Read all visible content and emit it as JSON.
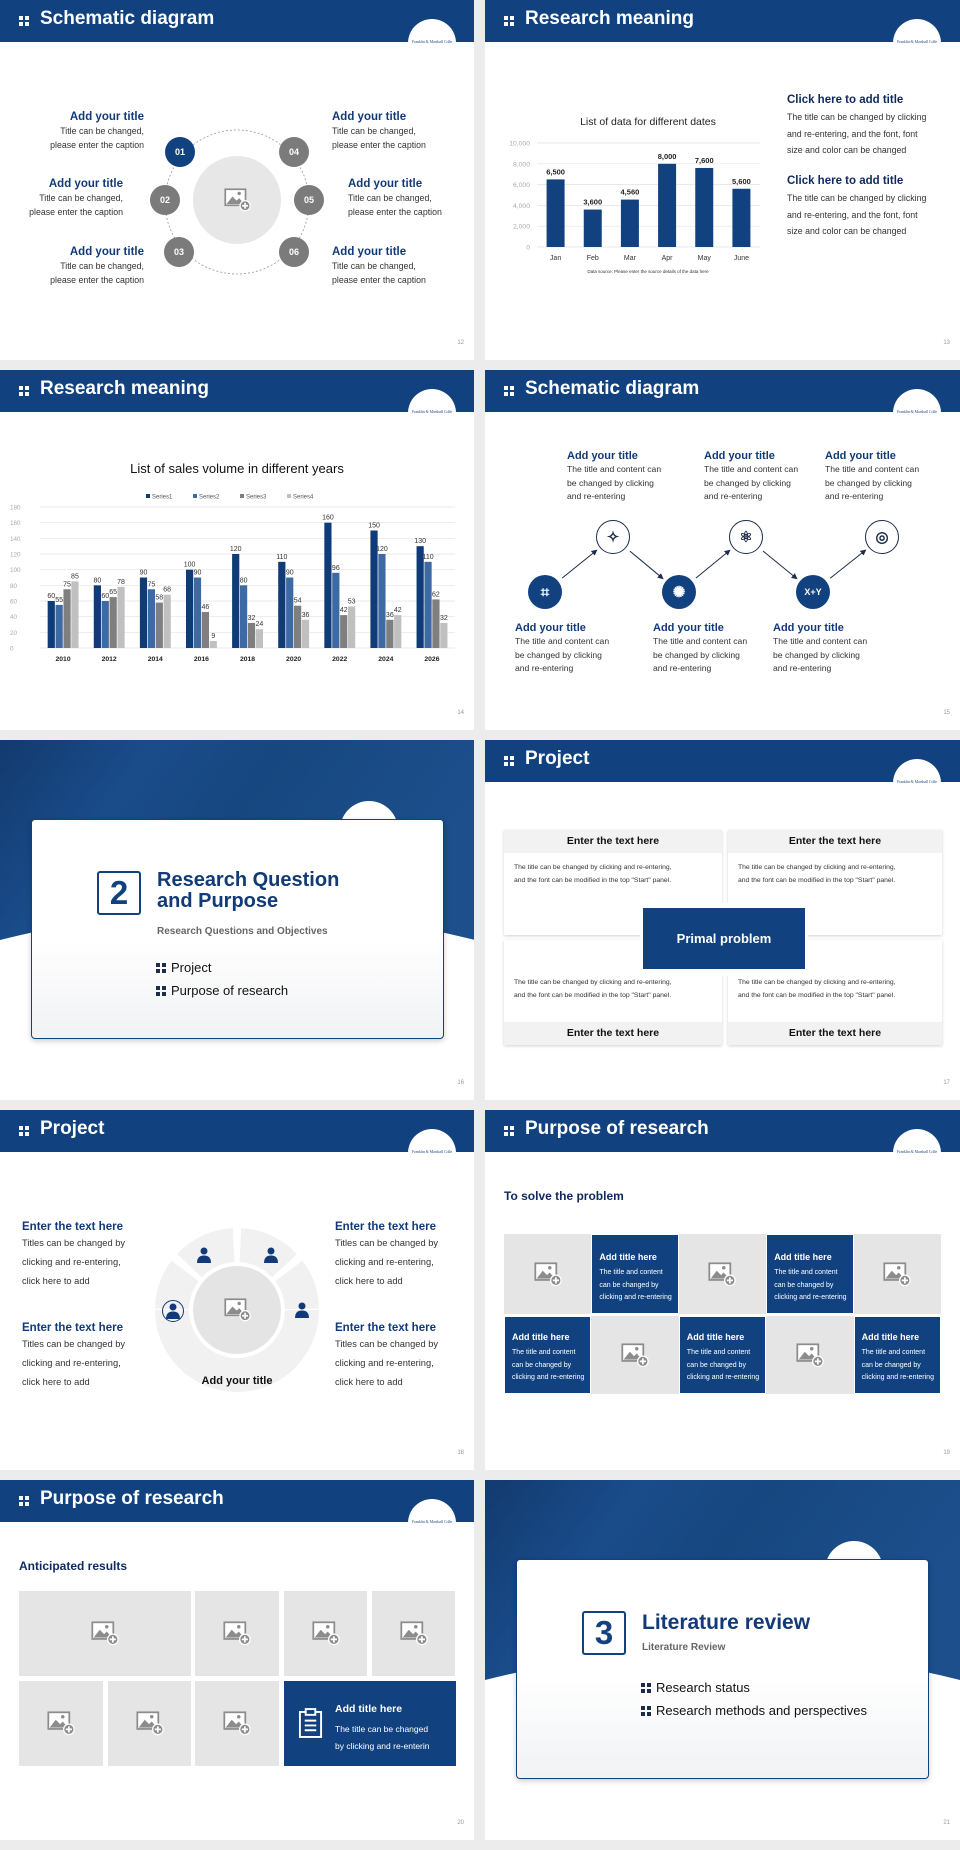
{
  "colors": {
    "primary": "#11427f",
    "dark_text": "#0e2a5c",
    "gray_circle": "#7b7b7b",
    "placeholder": "#e6e5e5"
  },
  "logo_text": "Franklin & Marshall College",
  "slides": [
    {
      "title": "Schematic diagram",
      "page": "12",
      "items": [
        {
          "num": "01",
          "title": "Add your title",
          "caption": [
            "Title can be changed,",
            "please enter the caption"
          ]
        },
        {
          "num": "02",
          "title": "Add your title",
          "caption": [
            "Title can be changed,",
            "please enter the caption"
          ]
        },
        {
          "num": "03",
          "title": "Add your title",
          "caption": [
            "Title can be changed,",
            "please enter the caption"
          ]
        },
        {
          "num": "04",
          "title": "Add your title",
          "caption": [
            "Title can be changed,",
            "please enter the caption"
          ]
        },
        {
          "num": "05",
          "title": "Add your title",
          "caption": [
            "Title can be changed,",
            "please enter the caption"
          ]
        },
        {
          "num": "06",
          "title": "Add your title",
          "caption": [
            "Title can be changed,",
            "please enter the caption"
          ]
        }
      ]
    },
    {
      "title": "Research meaning",
      "page": "13",
      "text_blocks": [
        {
          "title": "Click here to add title",
          "body": [
            "The title can be changed by clicking",
            "and re-entering, and the font, font",
            "size and color can be changed"
          ]
        },
        {
          "title": "Click here to add title",
          "body": [
            "The title can be changed by clicking",
            "and re-entering, and the font, font",
            "size and color can be changed"
          ]
        }
      ]
    },
    {
      "title": "Research meaning",
      "page": "14"
    },
    {
      "title": "Schematic diagram",
      "page": "15",
      "steps": [
        {
          "icon": "network-cube-icon",
          "title": "Add your title",
          "body": [
            "The title and content can",
            "be changed by clicking",
            "and re-entering"
          ]
        },
        {
          "icon": "sparkles-icon",
          "title": "Add your title",
          "body": [
            "The title and content can",
            "be changed by clicking",
            "and re-entering"
          ]
        },
        {
          "icon": "hub-icon",
          "title": "Add your title",
          "body": [
            "The title and content can",
            "be changed by clicking",
            "and re-entering"
          ]
        },
        {
          "icon": "molecule-icon",
          "title": "Add your title",
          "body": [
            "The title and content can",
            "be changed by clicking",
            "and re-entering"
          ]
        },
        {
          "icon": "formula-icon",
          "glyph": "X+Y",
          "title": "Add your title",
          "body": [
            "The title and content can",
            "be changed by clicking",
            "and re-entering"
          ]
        },
        {
          "icon": "orbit-icon",
          "title": "Add your title",
          "body": [
            "The title and content can",
            "be changed by clicking",
            "and re-entering"
          ]
        }
      ]
    },
    {
      "page": "16",
      "number": "2",
      "title_lines": [
        "Research Question",
        "and Purpose"
      ],
      "subtitle": "Research Questions and Objectives",
      "bullets": [
        "Project",
        "Purpose of research"
      ]
    },
    {
      "title": "Project",
      "page": "17",
      "center": "Primal problem",
      "boxes": [
        {
          "heading": "Enter the text here",
          "body": [
            "The title can be changed by clicking and re-entering,",
            "and the font can be modified in the top \"Start\" panel."
          ]
        },
        {
          "heading": "Enter the text here",
          "body": [
            "The title can be changed by clicking and re-entering,",
            "and the font can be modified in the top \"Start\" panel."
          ]
        },
        {
          "heading": "Enter the text here",
          "body": [
            "The title can be changed by clicking and re-entering,",
            "and the font can be modified in the top \"Start\" panel."
          ]
        },
        {
          "heading": "Enter the text here",
          "body": [
            "The title can be changed by clicking and re-entering,",
            "and the font can be modified in the top \"Start\" panel."
          ]
        }
      ]
    },
    {
      "title": "Project",
      "page": "18",
      "center_title": "Add your title",
      "icons": [
        "user-circle-icon",
        "team-icon",
        "user-settings-icon",
        "reader-icon"
      ],
      "blocks": [
        {
          "title": "Enter the text here",
          "body": [
            "Titles can be changed by",
            "clicking and re-entering,",
            "click here to add"
          ]
        },
        {
          "title": "Enter the text here",
          "body": [
            "Titles can be changed by",
            "clicking and re-entering,",
            "click here to add"
          ]
        },
        {
          "title": "Enter the text here",
          "body": [
            "Titles can be changed by",
            "clicking and re-entering,",
            "click here to add"
          ]
        },
        {
          "title": "Enter the text here",
          "body": [
            "Titles can be changed by",
            "clicking and re-entering,",
            "click here to add"
          ]
        }
      ]
    },
    {
      "title": "Purpose of research",
      "page": "19",
      "subtitle": "To solve the problem",
      "cells": [
        {
          "type": "image"
        },
        {
          "type": "text",
          "title": "Add title here",
          "body": [
            "The title and content",
            "can be changed by",
            "clicking and re-entering"
          ]
        },
        {
          "type": "image"
        },
        {
          "type": "text",
          "title": "Add title here",
          "body": [
            "The title and content",
            "can be changed by",
            "clicking and re-entering"
          ]
        },
        {
          "type": "image"
        },
        {
          "type": "text",
          "title": "Add title here",
          "body": [
            "The title and content",
            "can be changed by",
            "clicking and re-entering"
          ]
        },
        {
          "type": "image"
        },
        {
          "type": "text",
          "title": "Add title here",
          "body": [
            "The title and content",
            "can be changed by",
            "clicking and re-entering"
          ]
        },
        {
          "type": "image"
        },
        {
          "type": "text",
          "title": "Add title here",
          "body": [
            "The title and content",
            "can be changed by",
            "clicking and re-entering"
          ]
        }
      ]
    },
    {
      "title": "Purpose of research",
      "page": "20",
      "subtitle": "Anticipated results",
      "card": {
        "icon": "clipboard-icon",
        "title": "Add title here",
        "body": [
          "The title can be changed",
          "by clicking and re-enterin"
        ]
      }
    },
    {
      "page": "21",
      "number": "3",
      "title": "Literature review",
      "subtitle": "Literature Review",
      "bullets": [
        "Research status",
        "Research methods and perspectives"
      ]
    }
  ],
  "chart_data": [
    {
      "type": "bar",
      "title": "List of data for different dates",
      "categories": [
        "Jan",
        "Feb",
        "Mar",
        "Apr",
        "May",
        "June"
      ],
      "values": [
        6500,
        3600,
        4560,
        8000,
        7600,
        5600
      ],
      "value_labels": [
        "6,500",
        "3,600",
        "4,560",
        "8,000",
        "7,600",
        "5,600"
      ],
      "yticks": [
        "0",
        "2,000",
        "4,000",
        "6,000",
        "8,000",
        "10,000"
      ],
      "ylim": [
        0,
        10000
      ],
      "grid": true,
      "color": "#11427f",
      "note": "Data source: Please enter the source details of the data here"
    },
    {
      "type": "bar",
      "title": "List of sales volume in different years",
      "categories": [
        "2010",
        "2012",
        "2014",
        "2016",
        "2018",
        "2020",
        "2022",
        "2024",
        "2026"
      ],
      "series": [
        {
          "name": "Series1",
          "color": "#0f3c78",
          "values": [
            60,
            80,
            90,
            100,
            120,
            110,
            160,
            150,
            130
          ]
        },
        {
          "name": "Series2",
          "color": "#3d6aa2",
          "values": [
            55,
            60,
            75,
            90,
            80,
            90,
            96,
            120,
            110
          ]
        },
        {
          "name": "Series3",
          "color": "#7f7f7f",
          "values": [
            75,
            65,
            58,
            46,
            32,
            54,
            42,
            36,
            62
          ]
        },
        {
          "name": "Series4",
          "color": "#c0c0c0",
          "values": [
            85,
            78,
            68,
            9,
            24,
            36,
            53,
            42,
            32
          ]
        }
      ],
      "yticks": [
        "0",
        "20",
        "40",
        "60",
        "80",
        "100",
        "120",
        "140",
        "160",
        "180"
      ],
      "ylim": [
        0,
        180
      ],
      "grid": true,
      "legend": "top"
    }
  ]
}
